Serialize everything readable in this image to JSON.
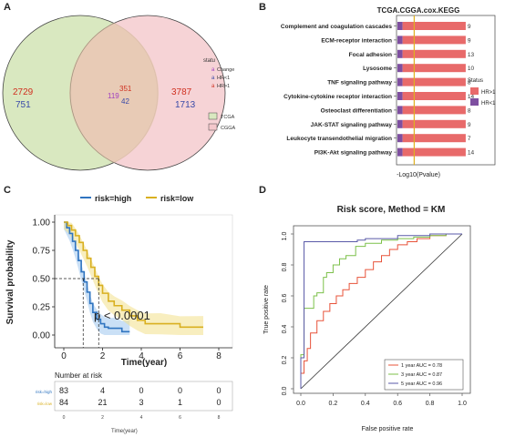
{
  "panels": {
    "a": {
      "letter": "A",
      "venn": {
        "left_only_change": "2729",
        "left_only_hr_lt1": "751",
        "overlap_change": "351",
        "overlap_hr_gt1": "119",
        "overlap_hr_lt1": "42",
        "right_only_change": "3787",
        "right_only_hr_lt1": "1713"
      },
      "legend_status": {
        "title": "statu",
        "items": [
          {
            "glyph": "a",
            "label": "Change",
            "color": "#a040c0"
          },
          {
            "glyph": "a",
            "label": "HR<1",
            "color": "#3a4aa8"
          },
          {
            "glyph": "a",
            "label": "HR>1",
            "color": "#d03020"
          }
        ]
      },
      "legend_sets": [
        {
          "label": "TCGA",
          "color": "#d9e8c0"
        },
        {
          "label": "CGGA",
          "color": "#f4c8cc"
        }
      ],
      "colors": {
        "left_circle": "#d9e8c0",
        "right_circle": "#f4c8cc"
      }
    },
    "b": {
      "letter": "B",
      "title": "TCGA.CGGA.cox.KEGG",
      "xlabel": "-Log10(Pvalue)",
      "legend_title": "Status",
      "legend": [
        {
          "label": "HR>1",
          "color": "#e86a6a"
        },
        {
          "label": "HR<1",
          "color": "#7e4fa0"
        }
      ],
      "pathways": [
        {
          "name": "Complement and coagulation cascades",
          "count": "9"
        },
        {
          "name": "ECM-receptor interaction",
          "count": "9"
        },
        {
          "name": "Focal adhesion",
          "count": "13"
        },
        {
          "name": "Lysosome",
          "count": "10"
        },
        {
          "name": "TNF signaling pathway",
          "count": "8"
        },
        {
          "name": "Cytokine-cytokine receptor interaction",
          "count": "14"
        },
        {
          "name": "Osteoclast differentiation",
          "count": "8"
        },
        {
          "name": "JAK-STAT signaling pathway",
          "count": "9"
        },
        {
          "name": "Leukocyte transendothelial migration",
          "count": "7"
        },
        {
          "name": "PI3K-Akt signaling pathway",
          "count": "14"
        }
      ]
    },
    "c": {
      "letter": "C",
      "legend": [
        {
          "label": "risk=high",
          "color": "#2f74c0"
        },
        {
          "label": "risk=low",
          "color": "#d9b020"
        }
      ],
      "ylabel": "Survival probability",
      "xlabel": "Time(year)",
      "yticks": [
        "0.00",
        "0.25",
        "0.50",
        "0.75",
        "1.00"
      ],
      "xticks": [
        "0",
        "2",
        "4",
        "6",
        "8"
      ],
      "pvalue": "p < 0.0001",
      "risk_table": {
        "title": "Number at risk",
        "rows": [
          {
            "label": "risk=high",
            "values": [
              "83",
              "4",
              "0",
              "0",
              "0"
            ]
          },
          {
            "label": "risk=low",
            "values": [
              "84",
              "21",
              "3",
              "1",
              "0"
            ]
          }
        ],
        "xticks": [
          "0",
          "2",
          "4",
          "6",
          "8"
        ],
        "xlabel": "Time(year)"
      }
    },
    "d": {
      "letter": "D",
      "title": "Risk score, Method = KM",
      "xlabel": "False positive rate",
      "ylabel": "True positive rate",
      "xticks": [
        "0.0",
        "0.2",
        "0.4",
        "0.6",
        "0.8",
        "1.0"
      ],
      "yticks": [
        "0.0",
        "0.2",
        "0.4",
        "0.6",
        "0.8",
        "1.0"
      ],
      "legend": [
        {
          "label": "1 year AUC = 0.78",
          "color": "#e8533a"
        },
        {
          "label": "3 year AUC = 0.87",
          "color": "#7cc04a"
        },
        {
          "label": "5 year AUC = 0.96",
          "color": "#5a5aa8"
        }
      ]
    }
  },
  "chart_data": [
    {
      "type": "bar",
      "categories": [
        "Complement and coagulation cascades",
        "ECM-receptor interaction",
        "Focal adhesion",
        "Lysosome",
        "TNF signaling pathway",
        "Cytokine-cytokine receptor interaction",
        "Osteoclast differentiation",
        "JAK-STAT signaling pathway",
        "Leukocyte transendothelial migration",
        "PI3K-Akt signaling pathway"
      ],
      "series": [
        {
          "name": "HR>1",
          "values": [
            4.9,
            4.9,
            4.9,
            4.9,
            4.9,
            4.9,
            4.9,
            4.9,
            4.9,
            4.9
          ]
        },
        {
          "name": "HR<1",
          "values": [
            0.4,
            0.4,
            0.4,
            0.4,
            0.4,
            0.4,
            0.4,
            0.4,
            0.4,
            0.4
          ]
        }
      ],
      "counts": [
        9,
        9,
        13,
        10,
        8,
        14,
        8,
        9,
        7,
        14
      ],
      "title": "TCGA.CGGA.cox.KEGG",
      "xlabel": "-Log10(Pvalue)",
      "xlim": [
        0,
        7.5
      ],
      "threshold_line": 1.3,
      "orientation": "horizontal"
    },
    {
      "type": "line",
      "title": "",
      "xlabel": "Time(year)",
      "ylabel": "Survival probability",
      "xlim": [
        0,
        8
      ],
      "ylim": [
        0,
        1
      ],
      "median_line": 0.5,
      "series": [
        {
          "name": "risk=high",
          "x": [
            0,
            0.15,
            0.3,
            0.45,
            0.6,
            0.75,
            0.9,
            1.05,
            1.2,
            1.35,
            1.5,
            1.7,
            1.9,
            2.1,
            2.3,
            2.6,
            3.0,
            3.4
          ],
          "y": [
            1.0,
            0.95,
            0.9,
            0.83,
            0.75,
            0.66,
            0.56,
            0.47,
            0.38,
            0.28,
            0.2,
            0.14,
            0.1,
            0.07,
            0.06,
            0.06,
            0.03,
            0.03
          ]
        },
        {
          "name": "risk=low",
          "x": [
            0,
            0.2,
            0.4,
            0.6,
            0.8,
            1.0,
            1.2,
            1.4,
            1.6,
            1.8,
            2.0,
            2.3,
            2.6,
            3.0,
            3.4,
            3.8,
            4.2,
            5.0,
            6.0,
            7.2
          ],
          "y": [
            1.0,
            0.97,
            0.93,
            0.88,
            0.82,
            0.75,
            0.68,
            0.6,
            0.52,
            0.44,
            0.37,
            0.3,
            0.26,
            0.22,
            0.17,
            0.13,
            0.1,
            0.1,
            0.07,
            0.07
          ]
        }
      ]
    },
    {
      "type": "line",
      "title": "Risk score, Method = KM",
      "xlabel": "False positive rate",
      "ylabel": "True positive rate",
      "xlim": [
        0,
        1
      ],
      "ylim": [
        0,
        1
      ],
      "series": [
        {
          "name": "1 year AUC = 0.78",
          "x": [
            0,
            0.02,
            0.04,
            0.06,
            0.1,
            0.14,
            0.18,
            0.22,
            0.26,
            0.3,
            0.35,
            0.4,
            0.45,
            0.5,
            0.55,
            0.6,
            0.66,
            0.72,
            0.8,
            0.9,
            1.0
          ],
          "y": [
            0,
            0.1,
            0.18,
            0.26,
            0.36,
            0.44,
            0.5,
            0.55,
            0.6,
            0.64,
            0.68,
            0.72,
            0.77,
            0.82,
            0.86,
            0.9,
            0.93,
            0.95,
            0.97,
            0.99,
            1.0
          ]
        },
        {
          "name": "3 year AUC = 0.87",
          "x": [
            0,
            0.02,
            0.02,
            0.08,
            0.1,
            0.14,
            0.16,
            0.2,
            0.24,
            0.28,
            0.34,
            0.4,
            0.5,
            0.6,
            0.7,
            0.8,
            0.9,
            1.0
          ],
          "y": [
            0,
            0.22,
            0.5,
            0.52,
            0.6,
            0.62,
            0.72,
            0.75,
            0.8,
            0.84,
            0.86,
            0.92,
            0.94,
            0.96,
            0.97,
            0.98,
            0.99,
            1.0
          ]
        },
        {
          "name": "5 year AUC = 0.96",
          "x": [
            0,
            0.02,
            0.02,
            0.35,
            0.35,
            0.4,
            0.6,
            0.8,
            1.0
          ],
          "y": [
            0,
            0.2,
            0.95,
            0.95,
            0.96,
            0.96,
            0.97,
            0.99,
            1.0
          ]
        }
      ]
    }
  ]
}
